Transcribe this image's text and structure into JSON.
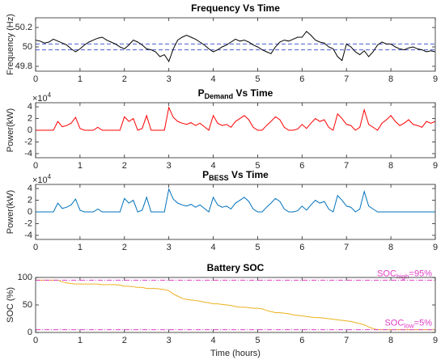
{
  "chart_data": [
    {
      "type": "line",
      "title": "Frequency Vs Time",
      "ylabel": "Frequency (Hz)",
      "x": [
        0,
        0.1,
        0.2,
        0.3,
        0.4,
        0.5,
        0.6,
        0.7,
        0.8,
        0.9,
        1,
        1.1,
        1.2,
        1.3,
        1.4,
        1.5,
        1.6,
        1.7,
        1.8,
        1.9,
        2,
        2.1,
        2.2,
        2.3,
        2.4,
        2.5,
        2.6,
        2.7,
        2.8,
        2.9,
        3,
        3.1,
        3.2,
        3.3,
        3.4,
        3.5,
        3.6,
        3.7,
        3.8,
        3.9,
        4,
        4.1,
        4.2,
        4.3,
        4.4,
        4.5,
        4.6,
        4.7,
        4.8,
        4.9,
        5,
        5.1,
        5.2,
        5.3,
        5.4,
        5.5,
        5.6,
        5.7,
        5.8,
        5.9,
        6,
        6.1,
        6.2,
        6.3,
        6.4,
        6.5,
        6.6,
        6.7,
        6.8,
        6.9,
        7,
        7.1,
        7.2,
        7.3,
        7.4,
        7.5,
        7.6,
        7.7,
        7.8,
        7.9,
        8,
        8.1,
        8.2,
        8.3,
        8.4,
        8.5,
        8.6,
        8.7,
        8.8,
        8.9,
        9
      ],
      "series": [
        {
          "color": "#000000",
          "values": [
            50.07,
            50.06,
            50.04,
            50.05,
            50.08,
            50.06,
            50.04,
            50.02,
            49.98,
            49.95,
            49.98,
            50.02,
            50.05,
            50.07,
            50.09,
            50.1,
            50.07,
            50.05,
            50.03,
            50.0,
            49.98,
            50.02,
            50.07,
            50.05,
            50.02,
            49.98,
            49.97,
            49.95,
            49.9,
            49.92,
            49.85,
            49.98,
            50.07,
            50.1,
            50.12,
            50.1,
            50.08,
            50.05,
            50.02,
            49.98,
            49.95,
            49.97,
            50.0,
            50.02,
            50.05,
            50.08,
            50.06,
            50.07,
            50.05,
            50.02,
            50.0,
            49.97,
            49.95,
            49.93,
            50.0,
            50.05,
            50.07,
            50.06,
            50.08,
            50.1,
            50.1,
            50.16,
            50.12,
            50.07,
            50.05,
            50.04,
            50.0,
            49.98,
            49.9,
            49.86,
            50.03,
            50.0,
            49.95,
            49.92,
            49.96,
            49.9,
            49.95,
            50.02,
            50.05,
            50.03,
            50.03,
            50.0,
            49.98,
            49.97,
            49.99,
            50.0,
            49.98,
            49.97,
            49.95,
            49.96,
            49.95
          ]
        }
      ],
      "reference_lines": {
        "color": "#4a5fd0",
        "values": [
          50.03,
          49.97
        ]
      },
      "xlim": [
        0,
        9
      ],
      "xticks": [
        0,
        1,
        2,
        3,
        4,
        5,
        6,
        7,
        8,
        9
      ],
      "ylim": [
        49.75,
        50.3
      ],
      "yticks": [
        49.8,
        50,
        50.2
      ]
    },
    {
      "type": "line",
      "title": {
        "text": "P",
        "sub": "Demand",
        "rest": " Vs Time"
      },
      "ylabel": "Power(kW)",
      "y_multiplier": {
        "text": "×10",
        "sup": "4"
      },
      "x": [
        0,
        0.1,
        0.2,
        0.3,
        0.4,
        0.5,
        0.6,
        0.7,
        0.8,
        0.9,
        1,
        1.1,
        1.2,
        1.3,
        1.4,
        1.5,
        1.6,
        1.7,
        1.8,
        1.9,
        2,
        2.1,
        2.2,
        2.3,
        2.4,
        2.5,
        2.6,
        2.7,
        2.8,
        2.9,
        3,
        3.1,
        3.2,
        3.3,
        3.4,
        3.5,
        3.6,
        3.7,
        3.8,
        3.9,
        4,
        4.1,
        4.2,
        4.3,
        4.4,
        4.5,
        4.6,
        4.7,
        4.8,
        4.9,
        5,
        5.1,
        5.2,
        5.3,
        5.4,
        5.5,
        5.6,
        5.7,
        5.8,
        5.9,
        6,
        6.1,
        6.2,
        6.3,
        6.4,
        6.5,
        6.6,
        6.7,
        6.8,
        6.9,
        7,
        7.1,
        7.2,
        7.3,
        7.4,
        7.5,
        7.6,
        7.7,
        7.8,
        7.9,
        8,
        8.1,
        8.2,
        8.3,
        8.4,
        8.5,
        8.6,
        8.7,
        8.8,
        8.9,
        9
      ],
      "series": [
        {
          "color": "#ff0000",
          "values": [
            0,
            0,
            0,
            0,
            0,
            1.5,
            0.6,
            0.8,
            1.2,
            2.2,
            0.3,
            0,
            0,
            0,
            0.5,
            0,
            0,
            0,
            0,
            0,
            2.3,
            1.5,
            2.0,
            0,
            0.3,
            2.5,
            0,
            0,
            0,
            0,
            3.9,
            2.2,
            1.5,
            1.2,
            1.0,
            1.3,
            0.8,
            1.2,
            0.6,
            0,
            2.5,
            1.2,
            0.8,
            1.0,
            0.5,
            1.5,
            2.0,
            2.5,
            1.8,
            0.5,
            0,
            0,
            0.8,
            1.5,
            2.3,
            1.8,
            0.5,
            0,
            0,
            0.2,
            1.0,
            0.3,
            1.2,
            2.0,
            1.5,
            1.8,
            0.5,
            0,
            2.8,
            2.0,
            1.0,
            0.8,
            0,
            0.5,
            3.5,
            1.0,
            0.5,
            0,
            1.2,
            1.8,
            2.5,
            1.5,
            0.8,
            1.2,
            1.8,
            1.0,
            0.8,
            0.5,
            1.5,
            1.2,
            1.5
          ]
        }
      ],
      "xlim": [
        0,
        9
      ],
      "xticks": [
        0,
        1,
        2,
        3,
        4,
        5,
        6,
        7,
        8,
        9
      ],
      "ylim": [
        -4.7,
        4.7
      ],
      "yticks": [
        -4,
        -2,
        0,
        2,
        4
      ]
    },
    {
      "type": "line",
      "title": {
        "text": "P",
        "sub": "BESS",
        "rest": " Vs Time"
      },
      "ylabel": "Power(kW)",
      "y_multiplier": {
        "text": "×10",
        "sup": "4"
      },
      "x": [
        0,
        0.1,
        0.2,
        0.3,
        0.4,
        0.5,
        0.6,
        0.7,
        0.8,
        0.9,
        1,
        1.1,
        1.2,
        1.3,
        1.4,
        1.5,
        1.6,
        1.7,
        1.8,
        1.9,
        2,
        2.1,
        2.2,
        2.3,
        2.4,
        2.5,
        2.6,
        2.7,
        2.8,
        2.9,
        3,
        3.1,
        3.2,
        3.3,
        3.4,
        3.5,
        3.6,
        3.7,
        3.8,
        3.9,
        4,
        4.1,
        4.2,
        4.3,
        4.4,
        4.5,
        4.6,
        4.7,
        4.8,
        4.9,
        5,
        5.1,
        5.2,
        5.3,
        5.4,
        5.5,
        5.6,
        5.7,
        5.8,
        5.9,
        6,
        6.1,
        6.2,
        6.3,
        6.4,
        6.5,
        6.6,
        6.7,
        6.8,
        6.9,
        7,
        7.1,
        7.2,
        7.3,
        7.4,
        7.5,
        7.6,
        7.7,
        7.8,
        7.9,
        8,
        8.1,
        8.2,
        8.3,
        8.4,
        8.5,
        8.6,
        8.7,
        8.8,
        8.9,
        9
      ],
      "series": [
        {
          "color": "#0072bd",
          "values": [
            0,
            0,
            0,
            0,
            0,
            1.5,
            0.6,
            0.8,
            1.2,
            2.2,
            0.3,
            0,
            0,
            0,
            0.5,
            0,
            0,
            0,
            0,
            0,
            2.3,
            1.5,
            2.0,
            0,
            0.3,
            2.5,
            0,
            0,
            0,
            0,
            3.9,
            2.2,
            1.5,
            1.2,
            1.0,
            1.3,
            0.8,
            1.2,
            0.6,
            0,
            2.5,
            1.2,
            0.8,
            1.0,
            0.5,
            1.5,
            2.0,
            2.5,
            1.8,
            0.5,
            0,
            0,
            0.8,
            1.5,
            2.3,
            1.8,
            0.5,
            0,
            0,
            0.2,
            1.0,
            0.3,
            1.2,
            2.0,
            1.5,
            1.8,
            0.5,
            0,
            2.8,
            2.0,
            1.0,
            0.8,
            0,
            0.5,
            3.5,
            1.0,
            0.5,
            0,
            0,
            0,
            0,
            0,
            0,
            0,
            0,
            0,
            0,
            0,
            0,
            0,
            0
          ]
        }
      ],
      "xlim": [
        0,
        9
      ],
      "xticks": [
        0,
        1,
        2,
        3,
        4,
        5,
        6,
        7,
        8,
        9
      ],
      "ylim": [
        -4.7,
        4.7
      ],
      "yticks": [
        -4,
        -2,
        0,
        2,
        4
      ]
    },
    {
      "type": "line",
      "title": "Battery SOC",
      "ylabel": "SOC (%)",
      "xlabel": "Time (hours)",
      "x": [
        0,
        0.1,
        0.2,
        0.3,
        0.4,
        0.5,
        0.6,
        0.7,
        0.8,
        0.9,
        1,
        1.1,
        1.2,
        1.3,
        1.4,
        1.5,
        1.6,
        1.7,
        1.8,
        1.9,
        2,
        2.1,
        2.2,
        2.3,
        2.4,
        2.5,
        2.6,
        2.7,
        2.8,
        2.9,
        3,
        3.1,
        3.2,
        3.3,
        3.4,
        3.5,
        3.6,
        3.7,
        3.8,
        3.9,
        4,
        4.1,
        4.2,
        4.3,
        4.4,
        4.5,
        4.6,
        4.7,
        4.8,
        4.9,
        5,
        5.1,
        5.2,
        5.3,
        5.4,
        5.5,
        5.6,
        5.7,
        5.8,
        5.9,
        6,
        6.1,
        6.2,
        6.3,
        6.4,
        6.5,
        6.6,
        6.7,
        6.8,
        6.9,
        7,
        7.1,
        7.2,
        7.3,
        7.4,
        7.5,
        7.6,
        7.7,
        7.8,
        7.9,
        8,
        8.1,
        8.2,
        8.3,
        8.4,
        8.5,
        8.6,
        8.7,
        8.8,
        8.9,
        9
      ],
      "series": [
        {
          "color": "#edb120",
          "values": [
            95,
            95,
            95,
            95,
            95,
            95,
            92,
            90,
            89,
            88,
            88,
            88,
            88,
            88,
            88,
            87,
            87,
            87,
            87,
            86,
            84,
            84,
            83,
            82,
            82,
            80,
            80,
            80,
            79,
            78,
            76,
            70,
            66,
            62,
            60,
            59,
            58,
            57,
            55,
            54,
            52,
            52,
            51,
            50,
            49,
            47,
            46,
            46,
            45,
            44,
            44,
            43,
            40,
            38,
            36,
            36,
            35,
            34,
            32,
            31,
            30,
            29,
            28,
            27,
            27,
            26,
            25,
            24,
            23,
            22,
            21,
            20,
            18,
            16,
            14,
            10,
            7,
            5,
            5,
            5,
            5,
            5,
            5,
            5,
            5,
            5,
            5,
            5,
            5,
            5,
            5
          ]
        }
      ],
      "thresholds": [
        {
          "value": 95,
          "color": "#e03cc8",
          "label": {
            "text": "SOC",
            "sub": "high",
            "rest": "=95%"
          }
        },
        {
          "value": 5,
          "color": "#e03cc8",
          "label": {
            "text": "SOC",
            "sub": "low",
            "rest": "=5%"
          }
        }
      ],
      "xlim": [
        0,
        9
      ],
      "xticks": [
        0,
        1,
        2,
        3,
        4,
        5,
        6,
        7,
        8,
        9
      ],
      "ylim": [
        0,
        100
      ],
      "yticks": [
        0,
        50,
        100
      ]
    }
  ]
}
